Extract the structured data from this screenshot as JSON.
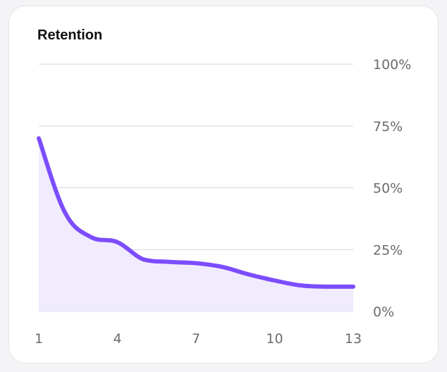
{
  "chart_data": {
    "type": "area",
    "title": "Retention",
    "xlabel": "",
    "ylabel": "",
    "x": [
      1,
      2,
      3,
      4,
      5,
      6,
      7,
      8,
      9,
      10,
      11,
      12,
      13
    ],
    "values": [
      70,
      40,
      30,
      28,
      21,
      20,
      19.5,
      18,
      15,
      12.5,
      10.5,
      10,
      10
    ],
    "xticks": [
      "1",
      "4",
      "7",
      "10",
      "13"
    ],
    "yticks": [
      "0%",
      "25%",
      "50%",
      "75%",
      "100%"
    ],
    "ylim": [
      0,
      100
    ],
    "xlim": [
      1,
      13
    ],
    "grid": true,
    "colors": {
      "line": "#7c4dff",
      "fill": "#f1ecfd",
      "grid": "#d6d6da"
    }
  }
}
